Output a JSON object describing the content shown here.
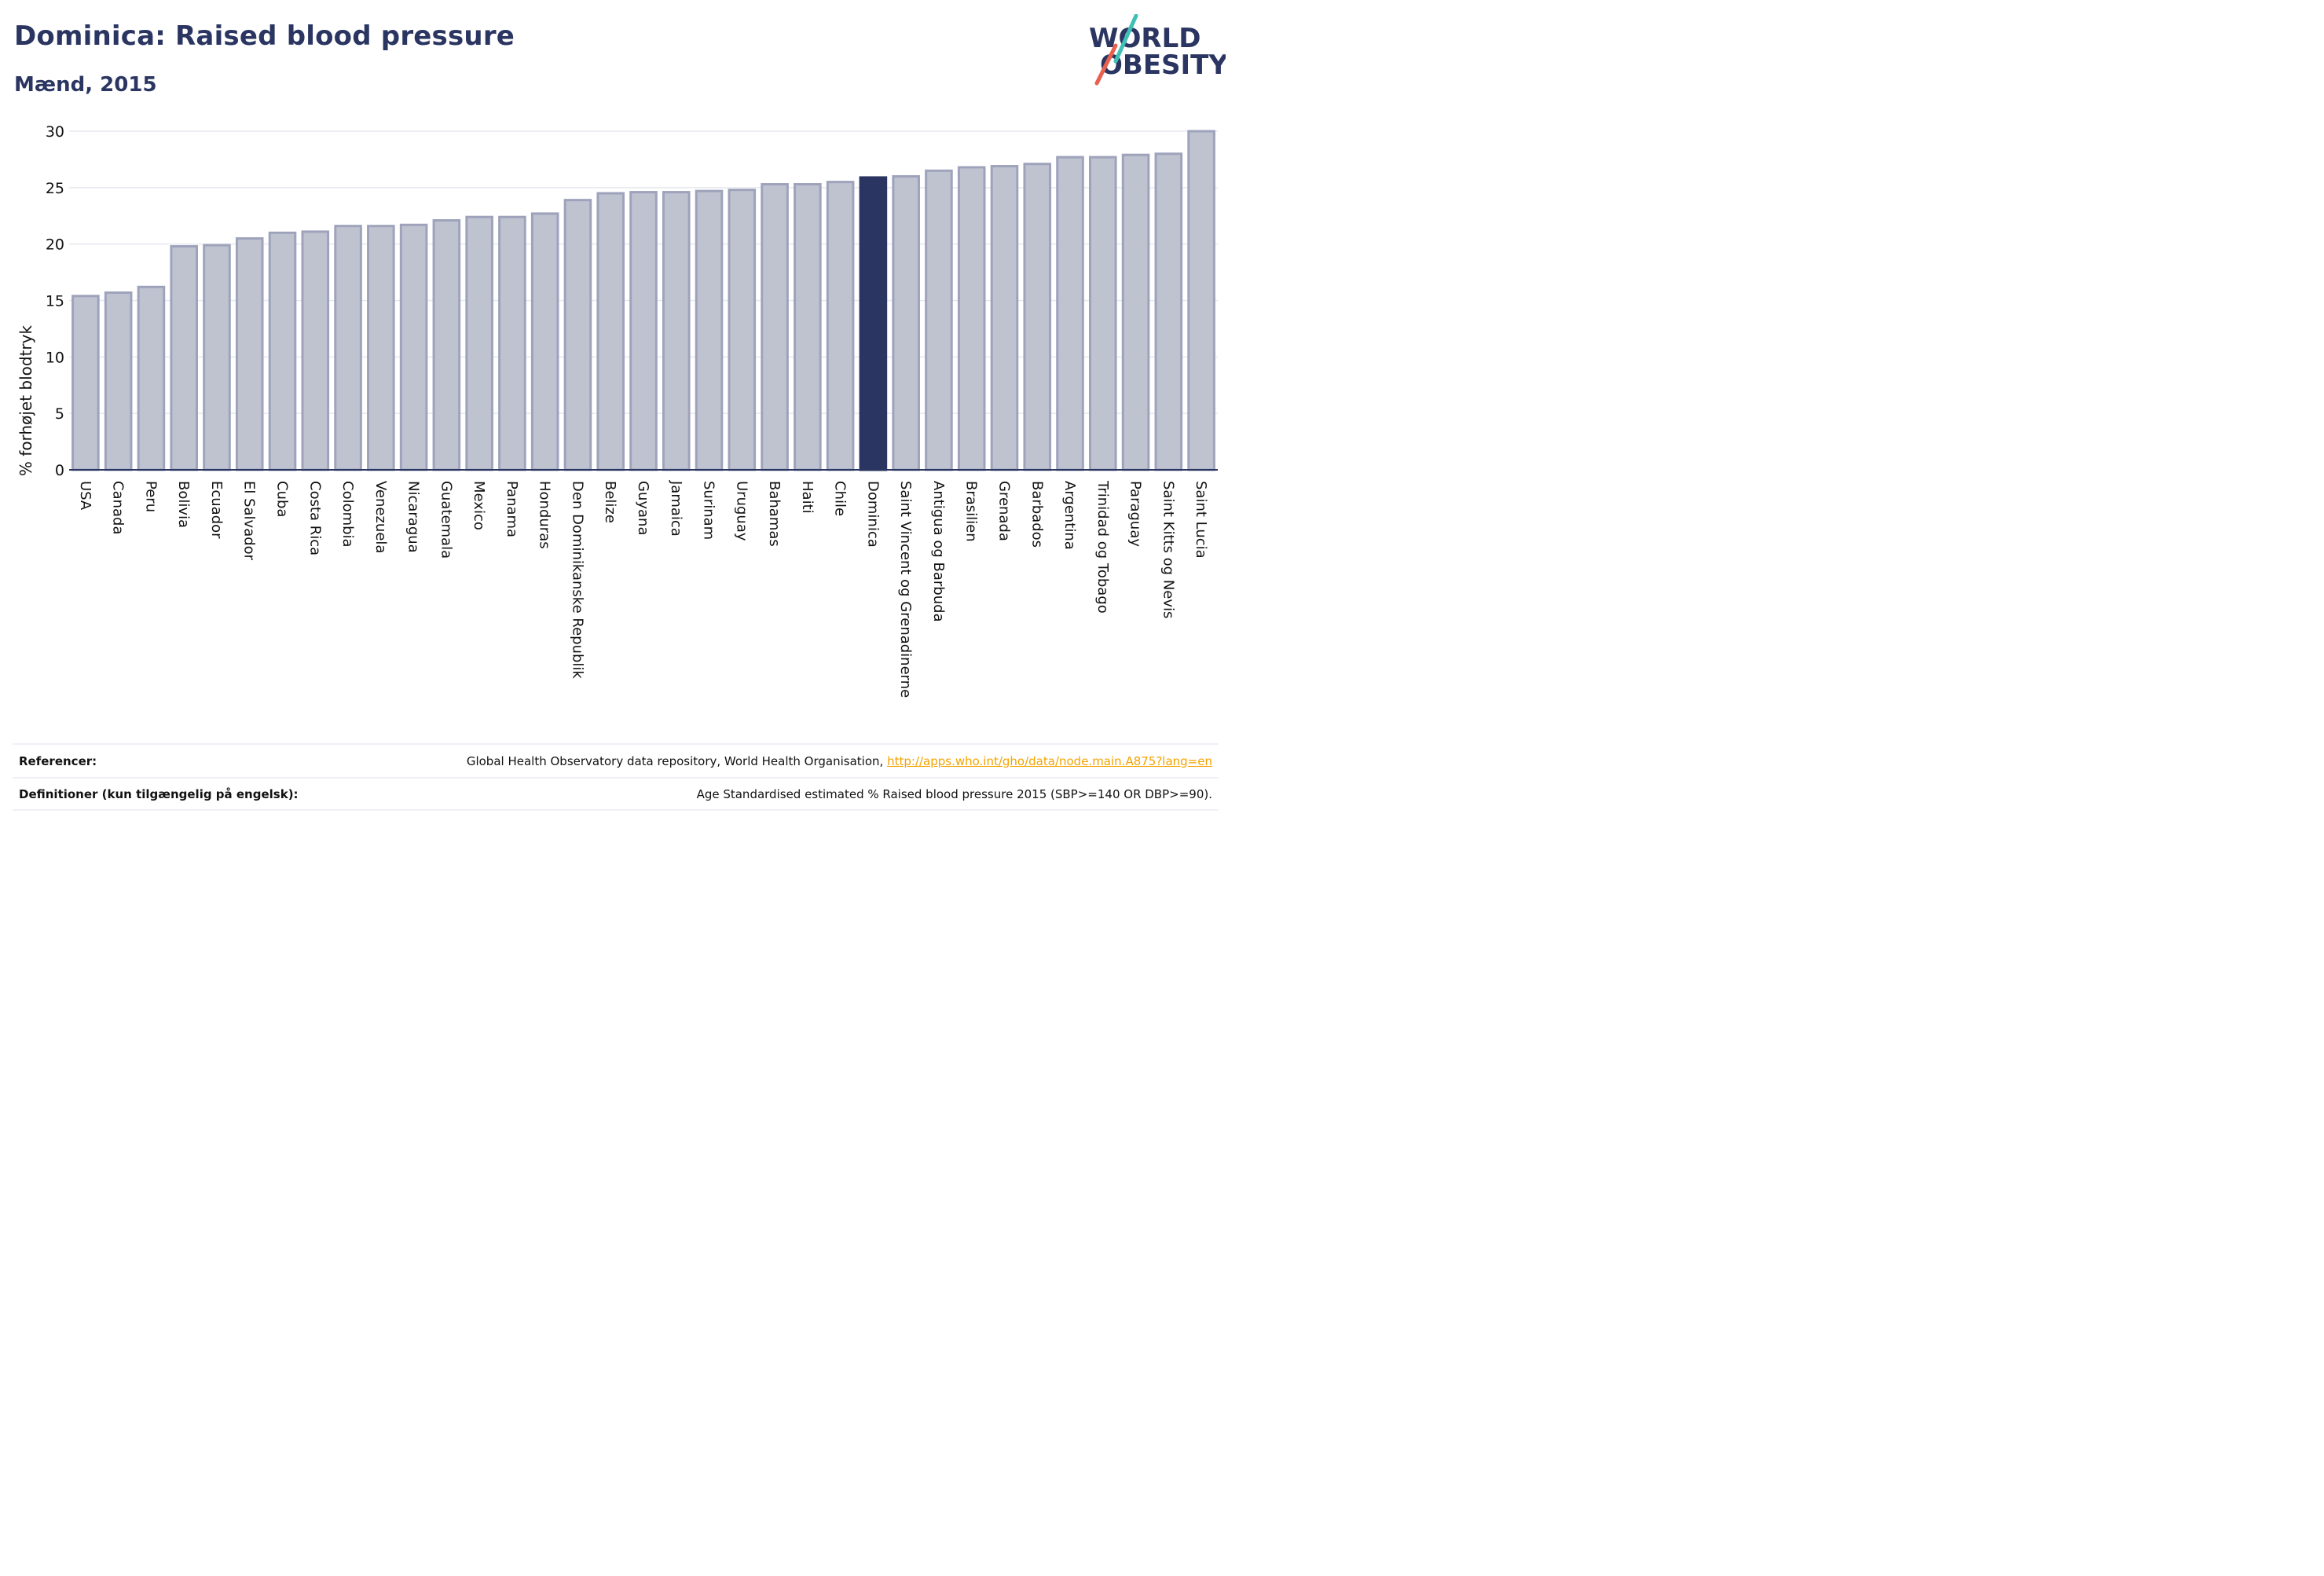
{
  "title": "Dominica: Raised blood pressure",
  "subtitle": "Mænd, 2015",
  "logo": {
    "line1": "WORLD",
    "line2": "OBESITY",
    "accent_teal": "#3fbfb5",
    "accent_red": "#e8614f",
    "text_color": "#2a3561"
  },
  "chart_data": {
    "type": "bar",
    "ylabel": "% forhøjet blodtryk",
    "xlabel": "",
    "ylim": [
      0,
      30
    ],
    "yticks": [
      0,
      5,
      10,
      15,
      20,
      25,
      30
    ],
    "grid": true,
    "highlight": "Dominica",
    "colors": {
      "bar": "#bfc3d0",
      "bar_edge": "#9ea3bb",
      "highlight": "#2a3561",
      "grid": "#e6e8ef",
      "axis": "#2a3561"
    },
    "categories": [
      "USA",
      "Canada",
      "Peru",
      "Bolivia",
      "Ecuador",
      "El Salvador",
      "Cuba",
      "Costa Rica",
      "Colombia",
      "Venezuela",
      "Nicaragua",
      "Guatemala",
      "Mexico",
      "Panama",
      "Honduras",
      "Den Dominikanske Republik",
      "Belize",
      "Guyana",
      "Jamaica",
      "Surinam",
      "Uruguay",
      "Bahamas",
      "Haiti",
      "Chile",
      "Dominica",
      "Saint Vincent og Grenadinerne",
      "Antigua og Barbuda",
      "Brasilien",
      "Grenada",
      "Barbados",
      "Argentina",
      "Trinidad og Tobago",
      "Paraguay",
      "Saint Kitts og Nevis",
      "Saint Lucia"
    ],
    "values": [
      15.4,
      15.7,
      16.2,
      19.8,
      19.9,
      20.5,
      21.0,
      21.1,
      21.6,
      21.6,
      21.7,
      22.1,
      22.4,
      22.4,
      22.7,
      23.9,
      24.5,
      24.6,
      24.6,
      24.7,
      24.8,
      25.3,
      25.3,
      25.5,
      25.9,
      26.0,
      26.5,
      26.8,
      26.9,
      27.1,
      27.7,
      27.7,
      27.9,
      28.0,
      30.0
    ]
  },
  "references": {
    "ref_label": "Referencer:",
    "ref_text": "Global Health Observatory data repository, World Health Organisation, ",
    "ref_link": "http://apps.who.int/gho/data/node.main.A875?lang=en",
    "def_label": "Definitioner (kun tilgængelig på engelsk):",
    "def_text": "Age Standardised estimated % Raised blood pressure 2015 (SBP>=140 OR DBP>=90)."
  }
}
